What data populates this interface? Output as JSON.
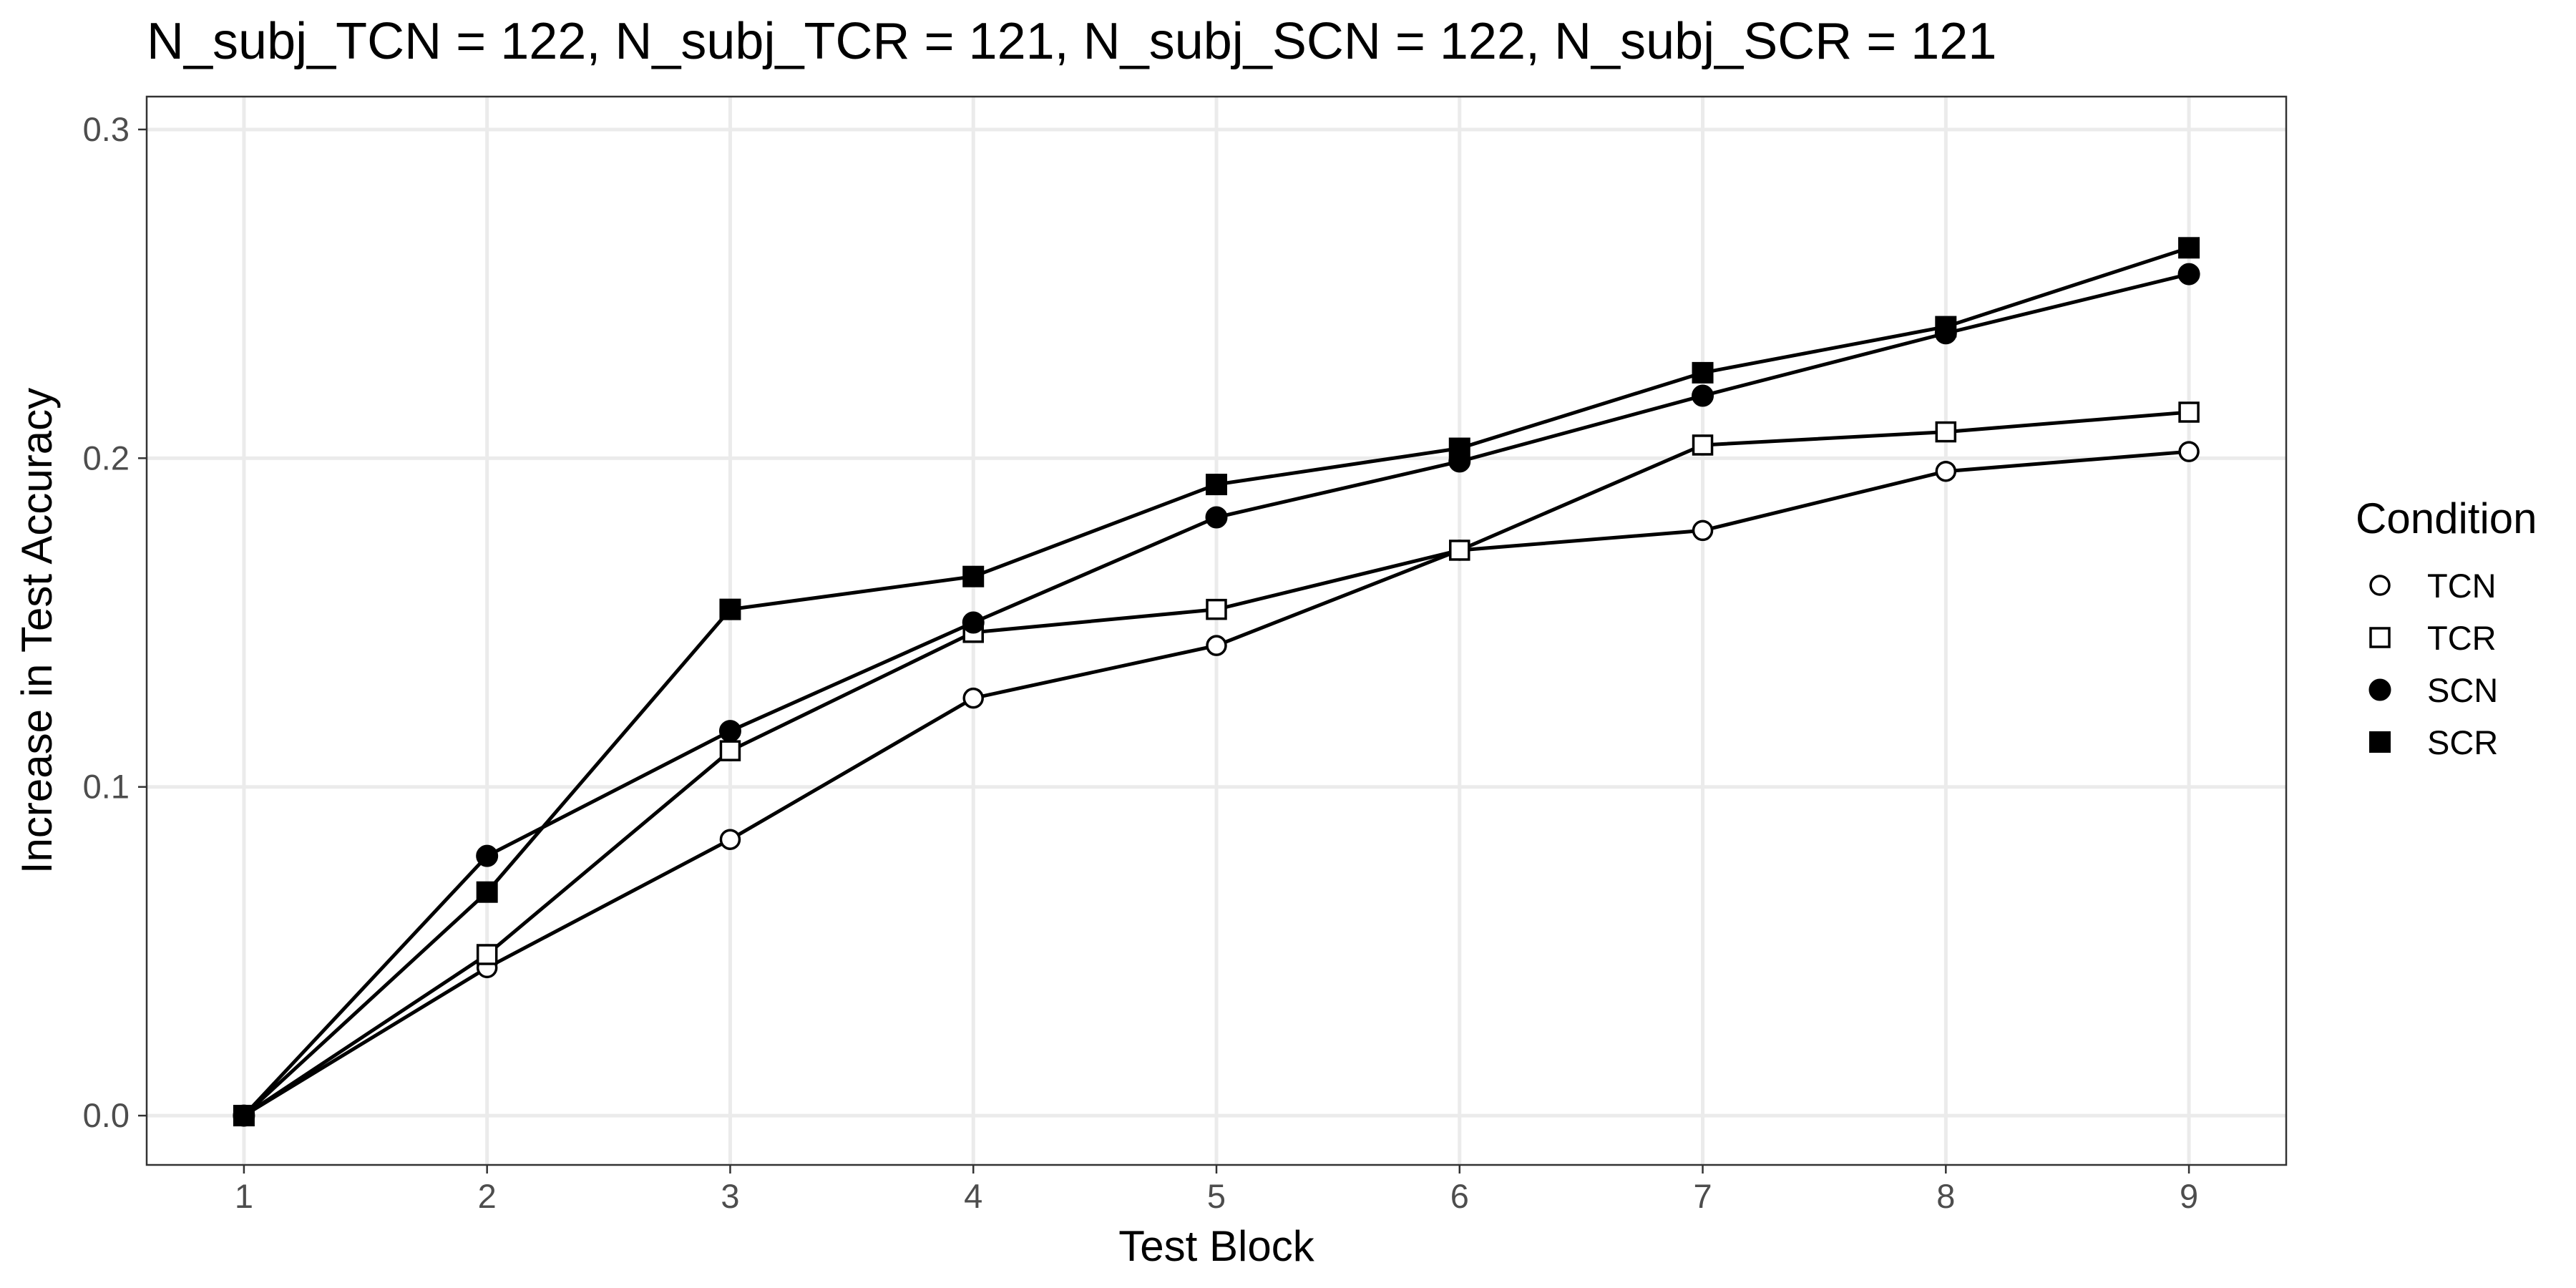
{
  "chart_data": {
    "type": "line",
    "title": "N_subj_TCN = 122, N_subj_TCR = 121, N_subj_SCN = 122, N_subj_SCR = 121",
    "xlabel": "Test Block",
    "ylabel": "Increase in Test Accuracy",
    "x": [
      1,
      2,
      3,
      4,
      5,
      6,
      7,
      8,
      9
    ],
    "xlim": [
      0.6,
      9.4
    ],
    "ylim": [
      -0.015,
      0.31
    ],
    "x_ticks": [
      "1",
      "2",
      "3",
      "4",
      "5",
      "6",
      "7",
      "8",
      "9"
    ],
    "y_ticks": [
      "0.0",
      "0.1",
      "0.2",
      "0.3"
    ],
    "grid": true,
    "legend": {
      "title": "Condition",
      "position": "right"
    },
    "series": [
      {
        "name": "TCN",
        "marker": "open-circle",
        "values": [
          0.0,
          0.045,
          0.084,
          0.127,
          0.143,
          0.172,
          0.178,
          0.196,
          0.202
        ]
      },
      {
        "name": "TCR",
        "marker": "open-square",
        "values": [
          0.0,
          0.049,
          0.111,
          0.147,
          0.154,
          0.172,
          0.204,
          0.208,
          0.214
        ]
      },
      {
        "name": "SCN",
        "marker": "filled-circle",
        "values": [
          0.0,
          0.079,
          0.117,
          0.15,
          0.182,
          0.199,
          0.219,
          0.238,
          0.256
        ]
      },
      {
        "name": "SCR",
        "marker": "filled-square",
        "values": [
          0.0,
          0.068,
          0.154,
          0.164,
          0.192,
          0.203,
          0.226,
          0.24,
          0.264
        ]
      }
    ],
    "colors": {
      "line": "#000000",
      "grid": "#ebebeb",
      "border": "#333333",
      "tick_text": "#4d4d4d"
    }
  }
}
